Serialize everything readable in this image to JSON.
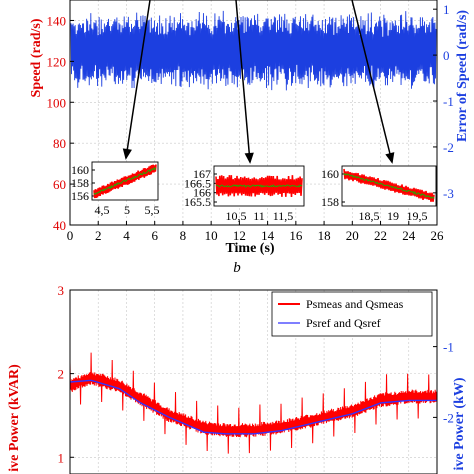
{
  "top_panel": {
    "y_left_label": "Speed (rad/s)",
    "y_right_label": "Error of Speed (rad/s)",
    "x_label": "Time (s)",
    "panel_label": "b",
    "y_left_ticks": [
      "40",
      "60",
      "80",
      "100",
      "120",
      "140"
    ],
    "y_right_ticks": [
      "1",
      "0",
      "-1",
      "-2",
      "-3"
    ],
    "x_ticks": [
      "0",
      "2",
      "4",
      "6",
      "8",
      "10",
      "12",
      "14",
      "16",
      "18",
      "20",
      "22",
      "24",
      "26"
    ],
    "insets": [
      {
        "y_ticks": [
          "160",
          "158",
          "156"
        ],
        "x_ticks": [
          "4,5",
          "5",
          "5,5"
        ]
      },
      {
        "y_ticks": [
          "167",
          "166.5",
          "166",
          "165.5"
        ],
        "x_ticks": [
          "10,5",
          "11",
          "11,5"
        ]
      },
      {
        "y_ticks": [
          "160",
          "158"
        ],
        "x_ticks": [
          "18,5",
          "19",
          "19,5"
        ]
      }
    ]
  },
  "bottom_panel": {
    "y_left_label": "ive Power (kVAR)",
    "y_right_label": "ive Power (kW)",
    "y_left_ticks": [
      "3",
      "2",
      "1"
    ],
    "y_right_ticks": [
      "-1",
      "-2"
    ],
    "legend": [
      "Psmeas and Qsmeas",
      "Psref and Qsref"
    ]
  },
  "chart_data": [
    {
      "type": "line",
      "x": [
        0,
        26
      ],
      "xlim": [
        0,
        26
      ],
      "ylim": [
        40,
        150
      ],
      "ylim_right": [
        -3.7,
        1.2
      ],
      "grid": true,
      "series": [
        {
          "axis": "right",
          "color": "#1c3fe0",
          "band_center": 0.1,
          "band_halfwidth": 0.75
        }
      ]
    },
    {
      "type": "line",
      "x": [
        0,
        1.5,
        3.5,
        5.0,
        7.0,
        9.5,
        11.0,
        13.0,
        15.0,
        17.5,
        20.0,
        22.0,
        24.0,
        26.0
      ],
      "ylim": [
        0.8,
        3.0
      ],
      "ylim_right": [
        -2.8,
        -0.2
      ],
      "grid": true,
      "legend_position": "top-right",
      "series": [
        {
          "name": "Psmeas and Qsmeas",
          "color": "#ff0000",
          "values": [
            1.85,
            1.95,
            1.85,
            1.7,
            1.5,
            1.35,
            1.32,
            1.32,
            1.36,
            1.45,
            1.55,
            1.68,
            1.72,
            1.72
          ]
        },
        {
          "name": "Psref and Qsref",
          "color": "#3333ff",
          "values": [
            1.9,
            1.92,
            1.82,
            1.65,
            1.48,
            1.3,
            1.28,
            1.28,
            1.32,
            1.42,
            1.52,
            1.65,
            1.68,
            1.68
          ]
        }
      ]
    }
  ]
}
